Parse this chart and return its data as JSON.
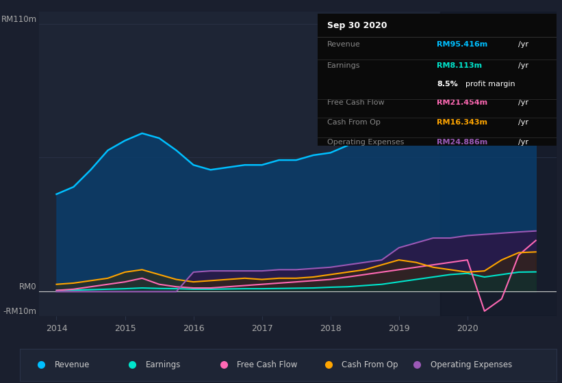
{
  "bg_color": "#1a1f2e",
  "plot_bg_color": "#1e2535",
  "grid_color": "#2a3348",
  "title_date": "Sep 30 2020",
  "ylim": [
    -10,
    115
  ],
  "x_years": [
    2014.0,
    2014.25,
    2014.5,
    2014.75,
    2015.0,
    2015.25,
    2015.5,
    2015.75,
    2016.0,
    2016.25,
    2016.5,
    2016.75,
    2017.0,
    2017.25,
    2017.5,
    2017.75,
    2018.0,
    2018.25,
    2018.5,
    2018.75,
    2019.0,
    2019.25,
    2019.5,
    2019.75,
    2020.0,
    2020.25,
    2020.5,
    2020.75,
    2021.0
  ],
  "revenue": [
    40,
    43,
    50,
    58,
    62,
    65,
    63,
    58,
    52,
    50,
    51,
    52,
    52,
    54,
    54,
    56,
    57,
    60,
    65,
    72,
    88,
    95,
    97,
    94,
    92,
    80,
    85,
    92,
    95
  ],
  "earnings": [
    0.5,
    0.6,
    0.8,
    1.0,
    1.2,
    1.5,
    1.3,
    1.2,
    1.0,
    1.0,
    1.1,
    1.2,
    1.2,
    1.3,
    1.4,
    1.5,
    1.8,
    2.0,
    2.5,
    3.0,
    4.0,
    5.0,
    6.0,
    7.0,
    7.5,
    6.0,
    7.0,
    8.0,
    8.1
  ],
  "free_cash_flow": [
    0.5,
    1.0,
    2.0,
    3.0,
    4.0,
    5.5,
    3.0,
    2.0,
    1.5,
    1.5,
    2.0,
    2.5,
    3.0,
    3.5,
    4.0,
    4.5,
    5.0,
    6.0,
    7.0,
    8.0,
    9.0,
    10.0,
    11.0,
    12.0,
    13.0,
    -8.0,
    -3.0,
    15.0,
    21.0
  ],
  "cash_from_op": [
    3.0,
    3.5,
    4.5,
    5.5,
    8.0,
    9.0,
    7.0,
    5.0,
    4.0,
    4.5,
    5.0,
    5.5,
    5.0,
    5.5,
    5.5,
    6.0,
    7.0,
    8.0,
    9.0,
    11.0,
    13.0,
    12.0,
    10.0,
    9.0,
    8.0,
    8.5,
    13.0,
    16.0,
    16.3
  ],
  "op_expenses": [
    0.0,
    0.0,
    0.0,
    0.0,
    0.0,
    0.0,
    0.0,
    0.0,
    8.0,
    8.5,
    8.5,
    8.5,
    8.5,
    9.0,
    9.0,
    9.5,
    10.0,
    11.0,
    12.0,
    13.0,
    18.0,
    20.0,
    22.0,
    22.0,
    23.0,
    23.5,
    24.0,
    24.5,
    24.9
  ],
  "revenue_color": "#00bfff",
  "revenue_fill": "#0a3d6b",
  "earnings_color": "#00e5cc",
  "earnings_fill": "#003833",
  "fcf_color": "#ff69b4",
  "fcf_fill": "#4a0028",
  "cfop_color": "#ffa500",
  "cfop_fill": "#3a2800",
  "opex_color": "#9b59b6",
  "opex_fill": "#2d1545",
  "legend_bg": "#1e2535",
  "legend_border": "#2a3348",
  "legend_text_color": "#cccccc",
  "axis_text_color": "#aaaaaa",
  "xticks": [
    2014,
    2015,
    2016,
    2017,
    2018,
    2019,
    2020
  ],
  "info_box_bg": "#0a0a0a",
  "info_separator": "#333333",
  "info_title": "Sep 30 2020",
  "info_rows": [
    {
      "label": "Revenue",
      "value": "RM95.416m",
      "color": "#00bfff",
      "separator": true
    },
    {
      "label": "Earnings",
      "value": "RM8.113m",
      "color": "#00e5cc",
      "separator": false
    },
    {
      "label": "",
      "value": "",
      "color": "",
      "separator": true,
      "extra": "8.5% profit margin"
    },
    {
      "label": "Free Cash Flow",
      "value": "RM21.454m",
      "color": "#ff69b4",
      "separator": true
    },
    {
      "label": "Cash From Op",
      "value": "RM16.343m",
      "color": "#ffa500",
      "separator": true
    },
    {
      "label": "Operating Expenses",
      "value": "RM24.886m",
      "color": "#9b59b6",
      "separator": false
    }
  ],
  "legend_items": [
    {
      "label": "Revenue",
      "color": "#00bfff"
    },
    {
      "label": "Earnings",
      "color": "#00e5cc"
    },
    {
      "label": "Free Cash Flow",
      "color": "#ff69b4"
    },
    {
      "label": "Cash From Op",
      "color": "#ffa500"
    },
    {
      "label": "Operating Expenses",
      "color": "#9b59b6"
    }
  ]
}
